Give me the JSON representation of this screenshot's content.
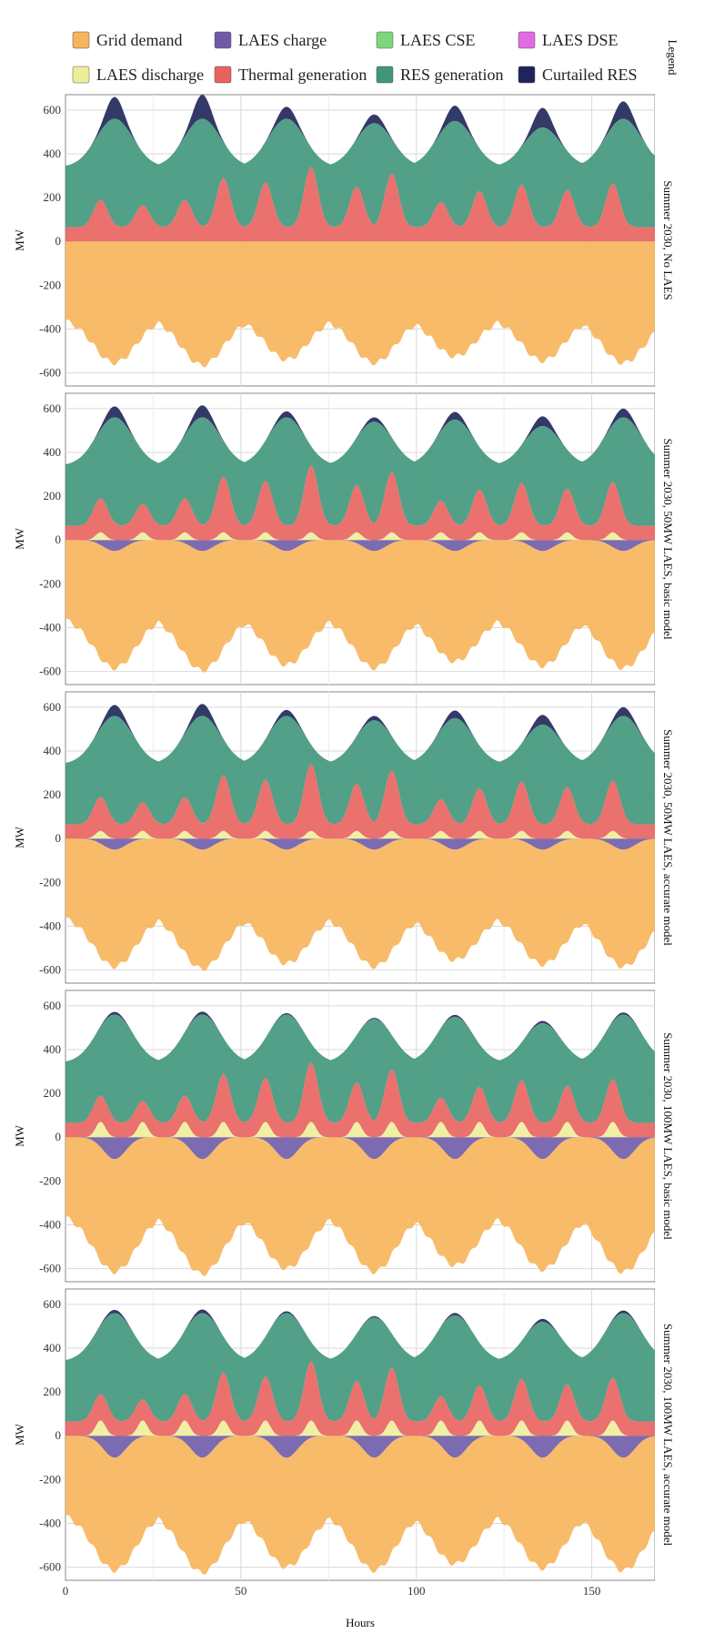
{
  "legend": {
    "strip": "Legend",
    "items": [
      {
        "key": "grid",
        "label": "Grid demand",
        "color": "#F7B45A"
      },
      {
        "key": "charge",
        "label": "LAES charge",
        "color": "#6E5BA8"
      },
      {
        "key": "cse",
        "label": "LAES CSE",
        "color": "#7ED67A"
      },
      {
        "key": "dse",
        "label": "LAES DSE",
        "color": "#E36BE0"
      },
      {
        "key": "discharge",
        "label": "LAES discharge",
        "color": "#EEEE9A"
      },
      {
        "key": "thermal",
        "label": "Thermal generation",
        "color": "#E8625E"
      },
      {
        "key": "res",
        "label": "RES generation",
        "color": "#3F967A"
      },
      {
        "key": "curtailed",
        "label": "Curtailed RES",
        "color": "#1E2558"
      }
    ]
  },
  "chart_data": {
    "type": "area",
    "xlabel": "Hours",
    "ylabel": "MW",
    "xlim": [
      0,
      168
    ],
    "ylim": [
      -660,
      670
    ],
    "x_ticks": [
      0,
      50,
      100,
      150
    ],
    "y_ticks": [
      -600,
      -400,
      -200,
      0,
      200,
      400,
      600
    ],
    "x_tick_labels": [
      "0",
      "50",
      "100",
      "150"
    ],
    "y_tick_labels": [
      "-600",
      "-400",
      "-200",
      "0",
      "200",
      "400",
      "600"
    ],
    "panels": [
      {
        "title": "Summer 2030, No LAES",
        "laes_mw": 0,
        "curtail_scale": 1.0,
        "demand_extra": 0
      },
      {
        "title": "Summer 2030, 50MW LAES, basic model",
        "laes_mw": 50,
        "curtail_scale": 0.5,
        "demand_extra": 50
      },
      {
        "title": "Summer 2030, 50MW LAES, accurate model",
        "laes_mw": 50,
        "curtail_scale": 0.5,
        "demand_extra": 50
      },
      {
        "title": "Summer 2030, 100MW LAES, basic model",
        "laes_mw": 100,
        "curtail_scale": 0.12,
        "demand_extra": 100
      },
      {
        "title": "Summer 2030, 100MW LAES, accurate model",
        "laes_mw": 100,
        "curtail_scale": 0.15,
        "demand_extra": 100
      }
    ],
    "profile": {
      "day_peak_hours": [
        14,
        39,
        63,
        88,
        111,
        136,
        159
      ],
      "day_res_peak_mw": [
        560,
        560,
        560,
        540,
        550,
        520,
        560
      ],
      "day_curtailed_peak_mw": [
        660,
        670,
        615,
        580,
        620,
        610,
        640
      ],
      "thermal_base_mw": 65,
      "thermal_spike_hours": [
        10,
        22,
        34,
        45,
        57,
        70,
        83,
        93,
        107,
        118,
        130,
        143,
        156
      ],
      "thermal_spike_mw": [
        190,
        165,
        190,
        290,
        270,
        340,
        250,
        310,
        180,
        230,
        260,
        235,
        265
      ],
      "demand_base_mw": -350,
      "demand_trough_mw": [
        -555,
        -565,
        -540,
        -555,
        -525,
        -545,
        -555
      ]
    }
  }
}
